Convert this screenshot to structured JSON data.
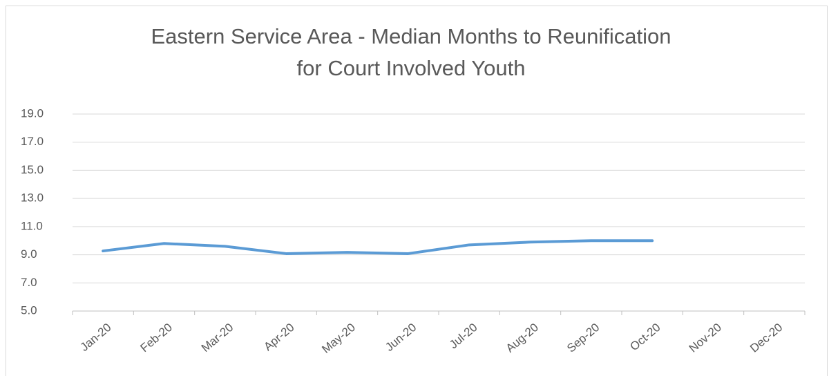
{
  "chart_data": {
    "type": "line",
    "title": "Eastern Service Area - Median Months to Reunification for Court Involved Youth",
    "categories": [
      "Jan-20",
      "Feb-20",
      "Mar-20",
      "Apr-20",
      "May-20",
      "Jun-20",
      "Jul-20",
      "Aug-20",
      "Sep-20",
      "Oct-20",
      "Nov-20",
      "Dec-20"
    ],
    "series": [
      {
        "name": "Median Months",
        "color": "#5b9bd5",
        "values": [
          9.27,
          9.8,
          9.6,
          9.08,
          9.17,
          9.08,
          9.7,
          9.9,
          10.0,
          10.0,
          null,
          null
        ]
      }
    ],
    "ylim": [
      5,
      19
    ],
    "yticks": [
      {
        "value": 5,
        "label": "5.0"
      },
      {
        "value": 7,
        "label": "7.0"
      },
      {
        "value": 9,
        "label": "9.0"
      },
      {
        "value": 11,
        "label": "11.0"
      },
      {
        "value": 13,
        "label": "13.0"
      },
      {
        "value": 15,
        "label": "15.0"
      },
      {
        "value": 17,
        "label": "17.0"
      },
      {
        "value": 19,
        "label": "19.0"
      }
    ],
    "grid": true
  }
}
